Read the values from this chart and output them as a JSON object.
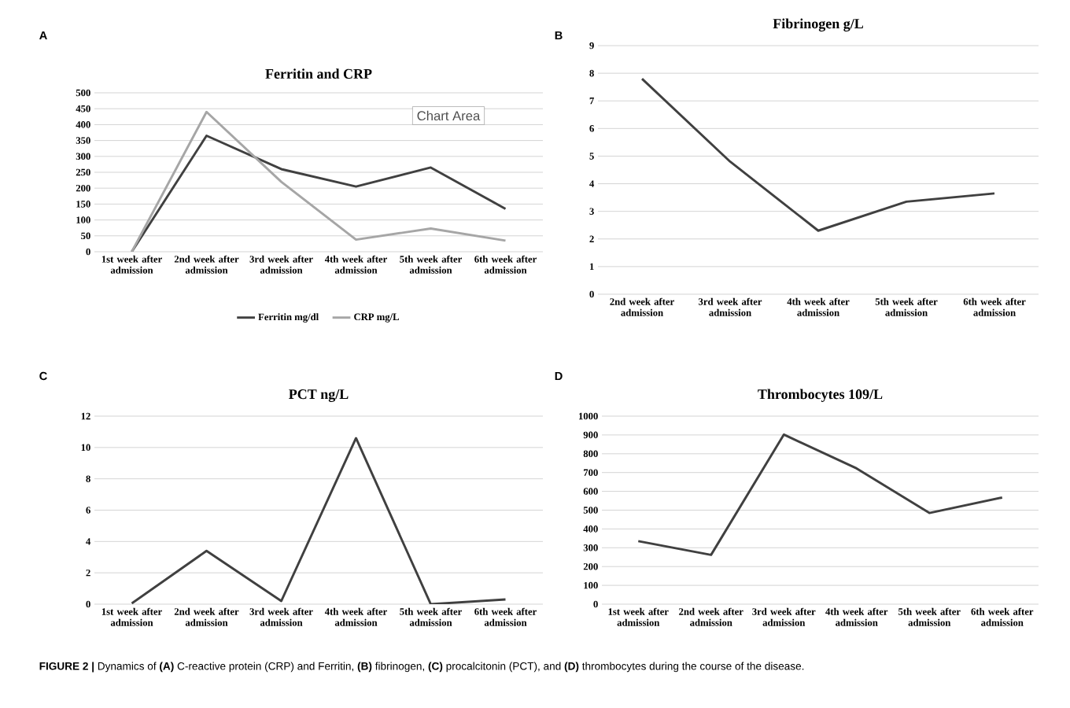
{
  "chart_data": [
    {
      "type": "line",
      "title": "Ferritin and CRP",
      "categories": [
        "1st week after admission",
        "2nd week after admission",
        "3rd week after admission",
        "4th week after admission",
        "5th week after admission",
        "6th week after admission"
      ],
      "series": [
        {
          "name": "Ferritin mg/dl",
          "color": "#404040",
          "values": [
            0,
            365,
            260,
            205,
            265,
            135
          ]
        },
        {
          "name": "CRP mg/L",
          "color": "#a6a6a6",
          "values": [
            0,
            440,
            220,
            38,
            73,
            35
          ]
        }
      ],
      "ylim": [
        0,
        500
      ],
      "yticks": [
        0,
        50,
        100,
        150,
        200,
        250,
        300,
        350,
        400,
        450,
        500
      ],
      "grid": "y",
      "legend": "bottom",
      "annotations": [
        "A",
        "Chart Area"
      ]
    },
    {
      "type": "line",
      "title": "Fibrinogen g/L",
      "categories": [
        "2nd week after admission",
        "3rd week after admission",
        "4th week after admission",
        "5th week after admission",
        "6th week after admission"
      ],
      "series": [
        {
          "color": "#404040",
          "values": [
            7.8,
            4.8,
            2.3,
            3.35,
            3.65
          ]
        }
      ],
      "ylim": [
        0,
        9
      ],
      "yticks": [
        0,
        1,
        2,
        3,
        4,
        5,
        6,
        7,
        8,
        9
      ],
      "grid": "y",
      "annotations": [
        "B"
      ]
    },
    {
      "type": "line",
      "title": "PCT ng/L",
      "categories": [
        "1st week after admission",
        "2nd week after admission",
        "3rd week after admission",
        "4th week after admission",
        "5th week after admission",
        "6th week after admission"
      ],
      "series": [
        {
          "color": "#404040",
          "values": [
            0.05,
            3.4,
            0.2,
            10.6,
            0,
            0.3
          ]
        }
      ],
      "ylim": [
        0,
        12
      ],
      "yticks": [
        0,
        2,
        4,
        6,
        8,
        10,
        12
      ],
      "grid": "y",
      "annotations": [
        "C"
      ]
    },
    {
      "type": "line",
      "title": "Thrombocytes 109/L",
      "categories": [
        "1st week after admission",
        "2nd week after admission",
        "3rd week after admission",
        "4th week after admission",
        "5th week after admission",
        "6th week after admission"
      ],
      "series": [
        {
          "color": "#404040",
          "values": [
            335,
            262,
            902,
            722,
            485,
            567
          ]
        }
      ],
      "ylim": [
        0,
        1000
      ],
      "yticks": [
        0,
        100,
        200,
        300,
        400,
        500,
        600,
        700,
        800,
        900,
        1000
      ],
      "grid": "y",
      "annotations": [
        "D",
        "**FIGURE 2 |** Dynamics of **(A)** C-reactive protein (CRP) and Ferritin, **(B)** fibrinogen, **(C)** procalcitonin (PCT), and **(D)** thrombocytes during the course of the disease."
      ]
    }
  ]
}
